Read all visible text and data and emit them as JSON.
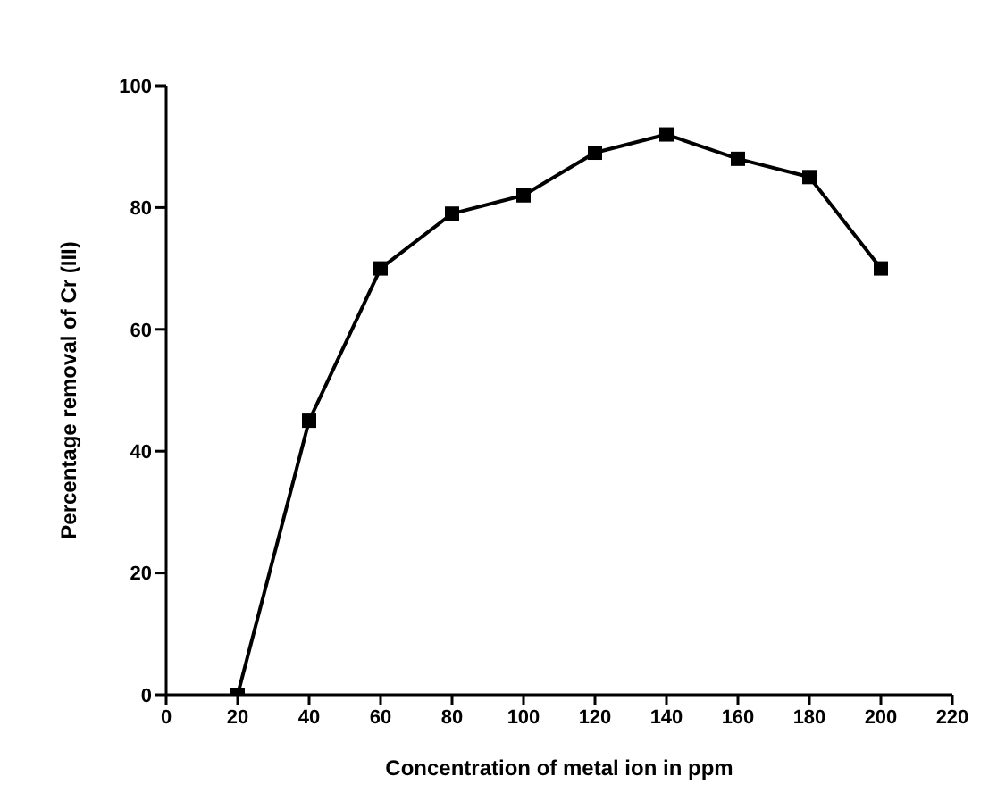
{
  "chart_data": {
    "type": "line",
    "xlabel": "Concentration of metal ion in ppm",
    "ylabel": "Percentage removal of Cr (III)",
    "x": [
      20,
      40,
      60,
      80,
      100,
      120,
      140,
      160,
      180,
      200
    ],
    "series": [
      {
        "color": "#000000",
        "values": [
          0,
          45,
          70,
          79,
          82,
          89,
          92,
          88,
          85,
          70
        ]
      }
    ],
    "xlim": [
      0,
      220
    ],
    "xticks": [
      0,
      20,
      40,
      60,
      80,
      100,
      120,
      140,
      160,
      180,
      200,
      220
    ],
    "ylim": [
      0,
      100
    ],
    "yticks": [
      0,
      20,
      40,
      60,
      80,
      100
    ],
    "marker": "square",
    "line_style": "solid",
    "grid": false,
    "legend": false
  }
}
